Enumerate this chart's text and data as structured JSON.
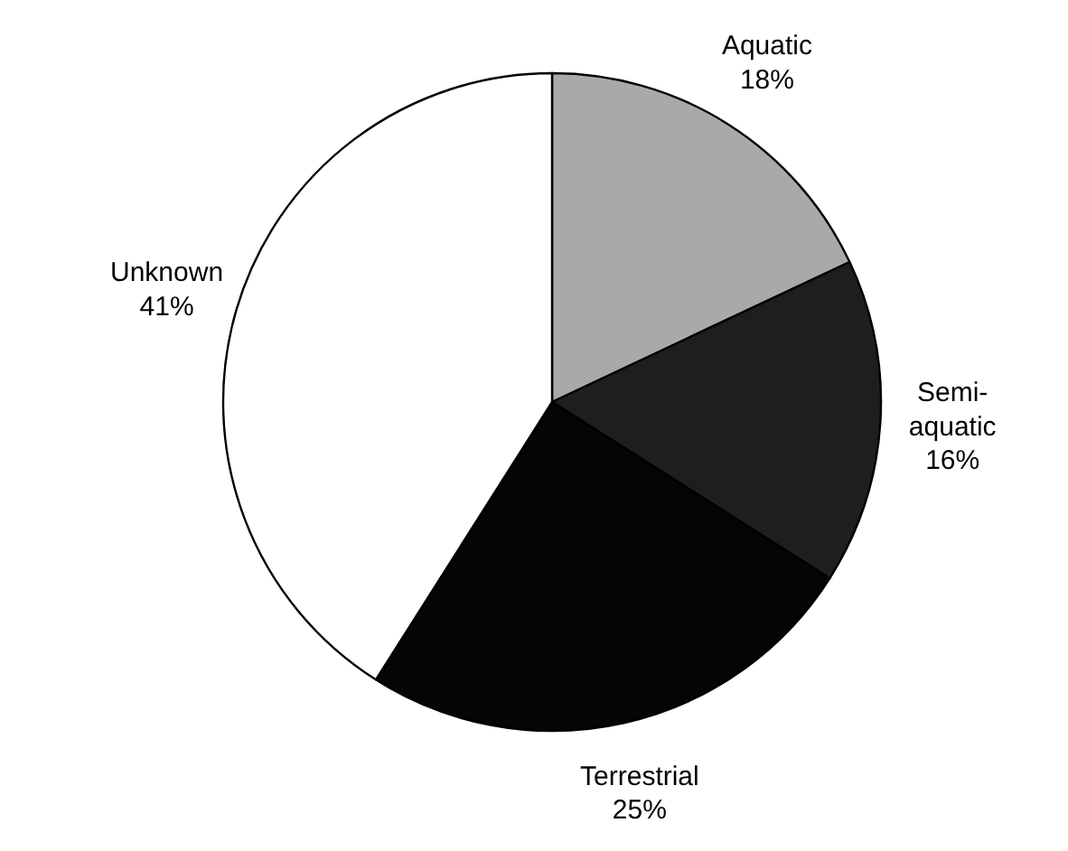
{
  "chart_data": {
    "type": "pie",
    "categories": [
      "Aquatic",
      "Semi-aquatic",
      "Terrestrial",
      "Unknown"
    ],
    "values": [
      18,
      16,
      25,
      41
    ],
    "colors": [
      "#a9a9a9",
      "#1e1e1e",
      "#050505",
      "#ffffff"
    ],
    "value_labels": [
      "18%",
      "16%",
      "25%",
      "41%"
    ]
  }
}
